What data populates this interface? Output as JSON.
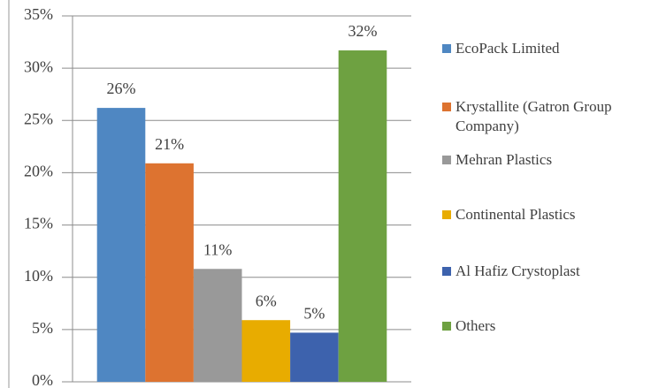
{
  "chart_data": {
    "type": "bar",
    "categories": [
      null
    ],
    "series": [
      {
        "name": "EcoPack Limited",
        "color": "#4f87c2",
        "values": [
          26.2
        ],
        "value_labels": [
          "26%"
        ]
      },
      {
        "name": "Krystallite (Gatron Group Company)",
        "color": "#dd7330",
        "values": [
          20.9
        ],
        "value_labels": [
          "21%"
        ]
      },
      {
        "name": "Mehran Plastics",
        "color": "#999999",
        "values": [
          10.8
        ],
        "value_labels": [
          "11%"
        ]
      },
      {
        "name": "Continental Plastics",
        "color": "#e8ac00",
        "values": [
          5.9
        ],
        "value_labels": [
          "6%"
        ]
      },
      {
        "name": "Al Hafiz Crystoplast",
        "color": "#3d62ad",
        "values": [
          4.7
        ],
        "value_labels": [
          "5%"
        ]
      },
      {
        "name": "Others",
        "color": "#6ea141",
        "values": [
          31.7
        ],
        "value_labels": [
          "32%"
        ]
      }
    ],
    "ylim": [
      0,
      35
    ],
    "yticks": [
      {
        "value": 0,
        "label": "0%"
      },
      {
        "value": 5,
        "label": "5%"
      },
      {
        "value": 10,
        "label": "10%"
      },
      {
        "value": 15,
        "label": "15%"
      },
      {
        "value": 20,
        "label": "20%"
      },
      {
        "value": 25,
        "label": "25%"
      },
      {
        "value": 30,
        "label": "30%"
      },
      {
        "value": 35,
        "label": "35%"
      }
    ],
    "grid": true,
    "legend": "right"
  }
}
